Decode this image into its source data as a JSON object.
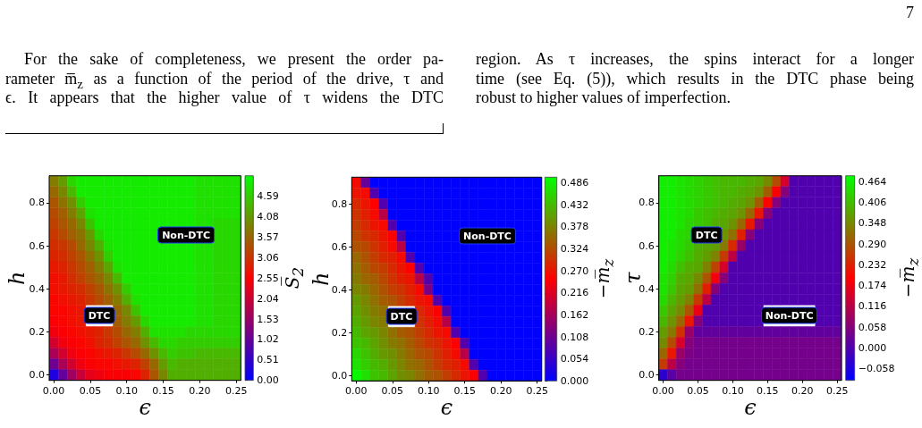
{
  "chart_data": [
    {
      "type": "other",
      "annotations": [
        "7",
        "For the sake of completeness, we present the order pa-",
        "rameter m̅$_{z}$ as a function of the period of the drive, τ and",
        "ϵ. It appears that the higher value of τ widens the DTC",
        "region. As τ increases, the spins interact for a longer",
        "time (see Eq. (5)), which results in the DTC phase being",
        "robust to higher values of imperfection."
      ]
    },
    {
      "type": "heatmap",
      "xlabel": "ϵ",
      "ylabel": "h",
      "clabel": "S̅$_{2}$",
      "categories": [
        "0.00",
        null,
        null,
        null,
        "0.05",
        null,
        null,
        null,
        "0.10",
        null,
        null,
        null,
        "0.15",
        null,
        null,
        null,
        "0.20",
        null,
        null,
        null,
        "0.25"
      ],
      "y_categories": [
        null,
        null,
        "0.8",
        null,
        null,
        null,
        "0.6",
        null,
        null,
        null,
        "0.4",
        null,
        null,
        null,
        "0.2",
        null,
        null,
        null,
        "0.0"
      ],
      "clim": [
        0,
        5.1
      ],
      "cticks": [
        {
          "value": 0,
          "label": "0.00"
        },
        0.51,
        1.02,
        1.53,
        2.04,
        2.55,
        3.06,
        3.57,
        4.08,
        4.59
      ],
      "annotations": [
        "DTC",
        "Non-DTC"
      ],
      "cells": [
        [
          3.8,
          4.1,
          4.7,
          4.9,
          4.9,
          4.9,
          4.9,
          4.9,
          4.9,
          4.9,
          4.9,
          4.9,
          4.9,
          4.9,
          4.9,
          4.9,
          4.8,
          4.8,
          4.8,
          4.8,
          4.8
        ],
        [
          3.6,
          3.9,
          4.4,
          4.9,
          4.9,
          4.9,
          4.9,
          4.9,
          4.9,
          4.9,
          4.9,
          4.9,
          4.9,
          4.9,
          4.9,
          4.9,
          4.8,
          4.8,
          4.8,
          4.8,
          4.8
        ],
        [
          3.4,
          3.7,
          4.0,
          4.6,
          4.9,
          4.9,
          4.9,
          4.9,
          4.9,
          4.9,
          4.9,
          4.9,
          4.9,
          4.9,
          4.9,
          4.9,
          4.8,
          4.8,
          4.8,
          4.8,
          4.8
        ],
        [
          3.3,
          3.5,
          3.8,
          4.2,
          4.8,
          4.9,
          4.9,
          4.9,
          4.9,
          4.9,
          4.9,
          4.9,
          4.9,
          4.9,
          4.9,
          4.9,
          4.8,
          4.8,
          4.8,
          4.8,
          4.8
        ],
        [
          3.2,
          3.4,
          3.6,
          3.9,
          4.5,
          4.9,
          4.9,
          4.9,
          4.9,
          4.9,
          4.9,
          4.9,
          4.9,
          4.9,
          4.9,
          4.9,
          4.8,
          4.8,
          4.7,
          4.7,
          4.7
        ],
        [
          3.1,
          3.3,
          3.5,
          3.7,
          4.1,
          4.7,
          4.9,
          4.9,
          4.9,
          4.9,
          4.9,
          4.9,
          null,
          null,
          null,
          null,
          null,
          null,
          4.7,
          4.7,
          4.7
        ],
        [
          3.0,
          3.1,
          3.3,
          3.6,
          3.9,
          4.3,
          4.8,
          4.9,
          4.9,
          4.9,
          4.9,
          4.9,
          4.9,
          4.9,
          4.9,
          4.9,
          4.8,
          4.8,
          4.7,
          4.7,
          4.7
        ],
        [
          2.9,
          3.0,
          3.2,
          3.4,
          3.7,
          4.0,
          4.6,
          4.9,
          4.9,
          4.9,
          4.9,
          4.9,
          4.9,
          4.9,
          4.9,
          4.9,
          4.8,
          4.8,
          4.7,
          4.7,
          4.7
        ],
        [
          2.8,
          2.9,
          3.1,
          3.3,
          3.5,
          3.8,
          4.2,
          4.8,
          4.9,
          4.9,
          4.9,
          4.9,
          4.9,
          4.9,
          4.9,
          4.9,
          4.8,
          4.8,
          4.7,
          4.7,
          4.7
        ],
        [
          2.7,
          2.8,
          3.0,
          3.2,
          3.4,
          3.6,
          3.9,
          4.4,
          4.9,
          4.9,
          4.9,
          4.9,
          4.9,
          4.9,
          4.9,
          4.9,
          4.8,
          4.8,
          4.7,
          4.7,
          4.7
        ],
        [
          2.7,
          2.8,
          2.9,
          3.0,
          3.2,
          3.4,
          3.7,
          4.0,
          4.6,
          4.9,
          4.9,
          4.9,
          4.9,
          4.9,
          4.9,
          4.9,
          4.8,
          4.8,
          4.7,
          4.7,
          4.7
        ],
        [
          2.6,
          2.7,
          2.8,
          2.9,
          3.1,
          3.3,
          3.5,
          3.8,
          4.3,
          4.8,
          4.9,
          4.9,
          4.9,
          4.9,
          4.9,
          4.9,
          4.8,
          4.8,
          4.7,
          4.7,
          4.7
        ],
        [
          2.6,
          2.6,
          2.7,
          2.8,
          null,
          null,
          null,
          3.6,
          3.9,
          4.5,
          4.9,
          4.9,
          4.9,
          4.9,
          4.9,
          4.9,
          4.8,
          4.8,
          4.7,
          4.7,
          4.7
        ],
        [
          2.5,
          2.6,
          2.7,
          2.8,
          null,
          null,
          null,
          3.5,
          3.8,
          4.1,
          4.7,
          4.9,
          4.9,
          4.9,
          4.9,
          4.9,
          4.8,
          4.8,
          4.7,
          4.7,
          4.7
        ],
        [
          2.4,
          2.5,
          2.6,
          2.7,
          2.8,
          2.9,
          3.1,
          3.3,
          3.6,
          3.8,
          4.3,
          4.8,
          4.8,
          4.8,
          4.8,
          4.7,
          4.7,
          4.7,
          4.7,
          4.7,
          4.7
        ],
        [
          2.1,
          2.4,
          2.5,
          2.6,
          2.7,
          2.9,
          3.0,
          3.2,
          3.4,
          3.6,
          4.0,
          4.4,
          4.7,
          4.7,
          4.6,
          4.6,
          4.6,
          4.6,
          4.6,
          4.6,
          4.6
        ],
        [
          1.7,
          2.1,
          2.4,
          2.5,
          2.6,
          2.7,
          2.8,
          2.9,
          3.1,
          3.3,
          3.6,
          4.0,
          4.4,
          4.6,
          4.5,
          4.5,
          4.4,
          4.4,
          4.4,
          4.4,
          4.4
        ],
        [
          1.1,
          1.7,
          2.1,
          2.4,
          2.5,
          2.6,
          2.6,
          2.7,
          2.8,
          2.9,
          3.2,
          3.6,
          4.1,
          4.4,
          4.3,
          4.3,
          4.3,
          4.3,
          4.3,
          4.3,
          4.3
        ],
        [
          0.3,
          1.0,
          1.6,
          2.0,
          2.3,
          2.4,
          2.5,
          2.5,
          2.5,
          2.6,
          2.9,
          3.4,
          3.9,
          4.3,
          4.3,
          4.3,
          4.3,
          4.3,
          4.3,
          4.3,
          4.3
        ]
      ]
    },
    {
      "type": "heatmap",
      "xlabel": "ϵ",
      "ylabel": "h",
      "clabel": "−m̅$_{z}$",
      "categories": [
        "0.00",
        null,
        null,
        null,
        "0.05",
        null,
        null,
        null,
        "0.10",
        null,
        null,
        null,
        "0.15",
        null,
        null,
        null,
        "0.20",
        null,
        null,
        null,
        "0.25"
      ],
      "y_categories": [
        null,
        null,
        "0.8",
        null,
        null,
        null,
        "0.6",
        null,
        null,
        null,
        "0.4",
        null,
        null,
        null,
        "0.2",
        null,
        null,
        null,
        "0.0"
      ],
      "clim": [
        0,
        0.5
      ],
      "cticks": [
        {
          "value": 0,
          "label": "0.000"
        },
        0.054,
        0.108,
        0.162,
        0.216,
        {
          "value": 0.27,
          "label": "0.270"
        },
        0.324,
        0.378,
        0.432,
        0.486
      ],
      "annotations": [
        "DTC",
        "Non-DTC"
      ],
      "cells": [
        [
          0.26,
          0.1,
          0,
          0,
          0,
          0,
          0,
          0,
          0,
          0,
          0,
          0,
          0,
          0,
          0,
          0,
          0,
          0,
          0,
          0,
          0
        ],
        [
          0.27,
          0.26,
          0.08,
          0,
          0,
          0,
          0,
          0,
          0,
          0,
          0,
          0,
          0,
          0,
          0,
          0,
          0,
          0,
          0,
          0,
          0
        ],
        [
          0.29,
          0.27,
          0.25,
          0.08,
          0,
          0,
          0,
          0,
          0,
          0,
          0,
          0,
          0,
          0,
          0,
          0,
          0,
          0,
          0,
          0,
          0
        ],
        [
          0.3,
          0.28,
          0.26,
          0.18,
          0,
          0,
          0,
          0,
          0,
          0,
          0,
          0,
          0,
          0,
          0,
          0,
          0,
          0,
          0,
          0,
          0
        ],
        [
          0.31,
          0.29,
          0.27,
          0.26,
          0.08,
          0,
          0,
          0,
          0,
          0,
          0,
          0,
          0,
          0,
          0,
          0,
          0,
          0,
          0,
          0,
          0
        ],
        [
          0.32,
          0.3,
          0.29,
          0.27,
          0.25,
          0.08,
          0,
          0,
          0,
          0,
          0,
          0,
          null,
          null,
          null,
          null,
          null,
          null,
          0,
          0,
          0
        ],
        [
          0.33,
          0.32,
          0.3,
          0.28,
          0.26,
          0.18,
          0,
          0,
          0,
          0,
          0,
          0,
          0,
          0,
          0,
          0,
          0,
          0,
          0,
          0,
          0
        ],
        [
          0.35,
          0.33,
          0.31,
          0.29,
          0.28,
          0.26,
          0.08,
          0,
          0,
          0,
          0,
          0,
          0,
          0,
          0,
          0,
          0,
          0,
          0,
          0,
          0
        ],
        [
          0.36,
          0.34,
          0.32,
          0.31,
          0.29,
          0.27,
          0.25,
          0.08,
          0,
          0,
          0,
          0,
          0,
          0,
          0,
          0,
          0,
          0,
          0,
          0,
          0
        ],
        [
          0.37,
          0.35,
          0.34,
          0.32,
          0.3,
          0.28,
          0.27,
          0.18,
          0.08,
          0,
          0,
          0,
          0,
          0,
          0,
          0,
          0,
          0,
          0,
          0,
          0
        ],
        [
          0.38,
          0.37,
          0.35,
          0.33,
          0.31,
          0.3,
          0.28,
          0.26,
          0.12,
          0,
          0,
          0,
          0,
          0,
          0,
          0,
          0,
          0,
          0,
          0,
          0
        ],
        [
          0.4,
          0.38,
          0.36,
          0.34,
          0.33,
          0.31,
          0.29,
          0.27,
          0.26,
          0.08,
          0,
          0,
          0,
          0,
          0,
          0,
          0,
          0,
          0,
          0,
          0
        ],
        [
          0.41,
          0.39,
          0.37,
          0.36,
          null,
          null,
          null,
          0.29,
          0.27,
          0.25,
          0.08,
          0,
          0,
          0,
          0,
          0,
          0,
          0,
          0,
          0,
          0
        ],
        [
          0.42,
          0.4,
          0.38,
          0.37,
          null,
          null,
          null,
          0.3,
          0.28,
          0.26,
          0.18,
          0,
          0,
          0,
          0,
          0,
          0,
          0,
          0,
          0,
          0
        ],
        [
          0.43,
          0.41,
          0.4,
          0.38,
          0.36,
          0.34,
          0.33,
          0.31,
          0.29,
          0.27,
          0.26,
          0.08,
          0,
          0,
          0,
          0,
          0,
          0,
          0,
          0,
          0
        ],
        [
          0.44,
          0.43,
          0.41,
          0.39,
          0.37,
          0.36,
          0.34,
          0.32,
          0.3,
          0.29,
          0.27,
          0.25,
          0.08,
          0,
          0,
          0,
          0,
          0,
          0,
          0,
          0
        ],
        [
          0.46,
          0.44,
          0.42,
          0.4,
          0.39,
          0.37,
          0.35,
          0.33,
          0.32,
          0.3,
          0.28,
          0.26,
          0.18,
          0,
          0,
          0,
          0,
          0,
          0,
          0,
          0
        ],
        [
          0.47,
          0.45,
          0.43,
          0.42,
          0.4,
          0.38,
          0.36,
          0.35,
          0.33,
          0.31,
          0.29,
          0.28,
          0.26,
          0.08,
          0,
          0,
          0,
          0,
          0,
          0,
          0
        ],
        [
          0.49,
          0.47,
          0.44,
          0.43,
          0.41,
          0.39,
          0.38,
          0.36,
          0.34,
          0.33,
          0.31,
          0.29,
          0.27,
          0.25,
          0.08,
          0,
          0,
          0,
          0,
          0,
          0
        ]
      ]
    },
    {
      "type": "heatmap",
      "xlabel": "ϵ",
      "ylabel": "τ",
      "clabel": "−m̅$_{z}$",
      "categories": [
        "0.00",
        null,
        null,
        null,
        "0.05",
        null,
        null,
        null,
        "0.10",
        null,
        null,
        null,
        "0.15",
        null,
        null,
        null,
        "0.20",
        null,
        null,
        null,
        "0.25"
      ],
      "y_categories": [
        null,
        null,
        "0.8",
        null,
        null,
        null,
        "0.6",
        null,
        null,
        null,
        "0.4",
        null,
        null,
        null,
        "0.2",
        null,
        null,
        null,
        "0.0"
      ],
      "clim": [
        -0.09,
        0.48
      ],
      "cticks": [
        {
          "value": -0.058,
          "label": "−0.058"
        },
        {
          "value": 0,
          "label": "0.000"
        },
        0.058,
        0.116,
        0.174,
        0.232,
        {
          "value": 0.29,
          "label": "0.290"
        },
        0.348,
        0.406,
        0.464
      ],
      "annotations": [
        "DTC",
        "Non-DTC"
      ],
      "cells": [
        [
          0.46,
          0.46,
          0.45,
          0.44,
          0.43,
          0.42,
          0.41,
          0.4,
          0.4,
          0.4,
          0.39,
          0.38,
          0.35,
          0.28,
          0.15,
          0,
          0,
          0,
          0,
          0,
          0
        ],
        [
          0.46,
          0.46,
          0.45,
          0.44,
          0.43,
          0.42,
          0.41,
          0.4,
          0.4,
          0.39,
          0.38,
          0.36,
          0.3,
          0.19,
          0.06,
          0,
          0,
          0,
          0,
          0,
          0
        ],
        [
          0.46,
          0.46,
          0.45,
          0.44,
          0.43,
          0.42,
          0.41,
          0.4,
          0.39,
          0.38,
          0.36,
          0.3,
          0.2,
          0.06,
          0,
          0,
          0,
          0,
          0,
          0,
          0
        ],
        [
          0.46,
          0.46,
          0.45,
          0.44,
          0.42,
          0.41,
          0.4,
          0.39,
          0.38,
          0.36,
          0.31,
          0.22,
          0.06,
          0,
          0,
          0,
          0,
          0,
          0,
          0,
          0
        ],
        [
          0.46,
          0.46,
          0.45,
          0.43,
          0.42,
          0.41,
          0.39,
          0.38,
          0.36,
          0.31,
          0.22,
          0.06,
          0,
          0,
          0,
          0,
          0,
          0,
          0,
          0,
          0
        ],
        [
          0.46,
          0.46,
          0.44,
          0.43,
          null,
          null,
          null,
          0.36,
          0.32,
          0.23,
          0.06,
          0,
          0,
          0,
          0,
          0,
          0,
          0,
          0,
          0,
          0
        ],
        [
          0.46,
          0.45,
          0.44,
          0.42,
          0.39,
          0.38,
          0.37,
          0.33,
          0.24,
          0.08,
          0,
          0,
          0,
          0,
          0,
          0,
          0,
          0,
          0,
          0,
          0
        ],
        [
          0.46,
          0.45,
          0.43,
          0.41,
          0.39,
          0.37,
          0.34,
          0.26,
          0.12,
          0,
          0,
          0,
          0,
          0,
          0,
          0,
          0,
          0,
          0,
          0,
          0
        ],
        [
          0.46,
          0.44,
          0.41,
          0.39,
          0.38,
          0.34,
          0.27,
          0.15,
          0,
          0,
          0,
          0,
          0,
          0,
          0,
          0,
          0,
          0,
          0,
          0,
          0
        ],
        [
          0.45,
          0.43,
          0.39,
          0.38,
          0.35,
          0.29,
          0.18,
          0.06,
          0,
          0,
          0,
          0,
          0,
          0,
          0,
          0,
          0,
          0,
          0,
          0,
          0
        ],
        [
          0.45,
          0.42,
          0.38,
          0.37,
          0.32,
          0.23,
          0.06,
          0,
          0,
          0,
          0,
          0,
          0,
          0,
          0,
          0,
          0,
          0,
          0,
          0,
          0
        ],
        [
          0.44,
          0.4,
          0.37,
          0.34,
          0.26,
          0.12,
          0,
          0,
          0,
          0,
          0,
          0,
          0,
          0,
          0,
          0,
          0,
          0,
          0,
          0,
          0
        ],
        [
          0.42,
          0.38,
          0.35,
          0.29,
          0.17,
          0,
          0,
          0,
          0,
          0,
          0,
          0,
          null,
          null,
          null,
          null,
          null,
          null,
          0,
          0,
          0
        ],
        [
          0.4,
          0.36,
          0.31,
          0.22,
          0.06,
          0,
          0,
          0,
          0,
          0,
          0,
          0,
          null,
          null,
          null,
          null,
          null,
          null,
          0,
          0,
          0
        ],
        [
          0.37,
          0.33,
          0.25,
          0.08,
          0.02,
          0.02,
          0.02,
          0.02,
          0.02,
          0.02,
          0.02,
          0.02,
          0.02,
          0.02,
          0.02,
          0.02,
          0.02,
          0.02,
          0.02,
          0.02,
          0.02
        ],
        [
          0.35,
          0.28,
          0.15,
          0.06,
          0.04,
          0.04,
          0.04,
          0.04,
          0.04,
          0.04,
          0.04,
          0.04,
          0.04,
          0.04,
          0.04,
          0.04,
          0.04,
          0.04,
          0.04,
          0.04,
          0.04
        ],
        [
          0.31,
          0.22,
          0.08,
          0.05,
          0.04,
          0.04,
          0.04,
          0.04,
          0.04,
          0.04,
          0.04,
          0.04,
          0.04,
          0.04,
          0.04,
          0.04,
          0.04,
          0.04,
          0.04,
          0.04,
          0.04
        ],
        [
          0.26,
          0.12,
          0.06,
          0.04,
          0.04,
          0.04,
          0.04,
          0.04,
          0.04,
          0.04,
          0.04,
          0.04,
          0.04,
          0.04,
          0.04,
          0.04,
          0.04,
          0.04,
          0.04,
          0.04,
          0.04
        ],
        [
          -0.04,
          0.01,
          0.04,
          0.04,
          0.04,
          0.04,
          0.04,
          0.04,
          0.04,
          0.04,
          0.04,
          0.04,
          0.04,
          0.04,
          0.04,
          0.04,
          0.04,
          0.04,
          0.04,
          0.04,
          0.04
        ]
      ]
    }
  ]
}
